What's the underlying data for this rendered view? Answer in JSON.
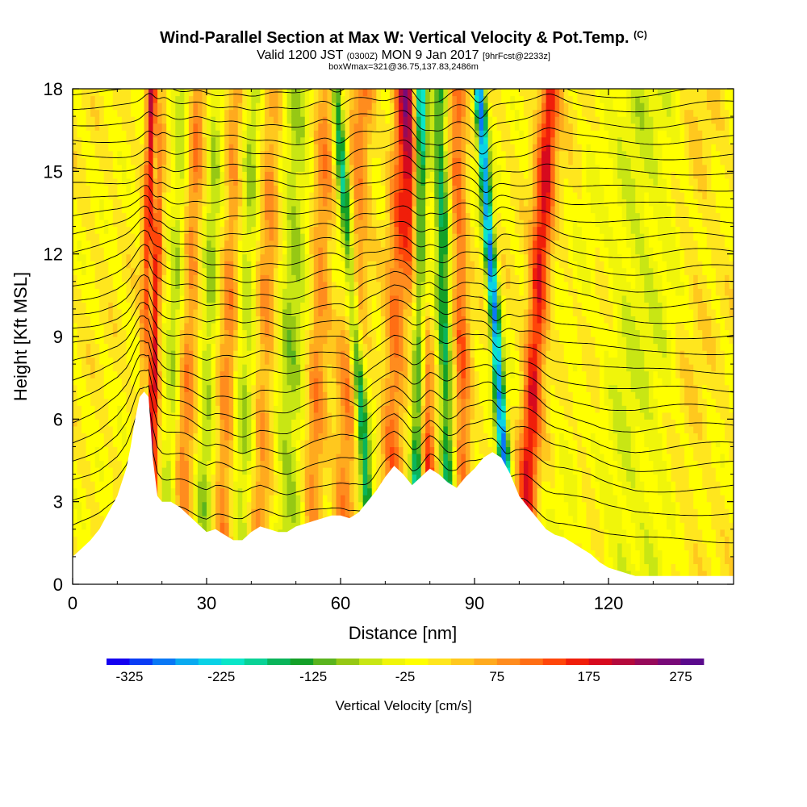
{
  "header": {
    "title_main": "Wind-Parallel Section at Max W: Vertical Velocity & Pot.Temp.",
    "title_mark": "(C)",
    "valid_prefix": "Valid 1200 JST",
    "valid_utc": "(0300Z)",
    "valid_date": "MON 9 Jan 2017",
    "forecast_tag": "[9hrFcst@2233z]",
    "box_info": "boxWmax=321@36.75,137.83,2486m"
  },
  "chart_data": {
    "type": "heatmap",
    "xlabel": "Distance [nm]",
    "ylabel": "Height [Kft MSL]",
    "xlim": [
      0,
      148
    ],
    "ylim": [
      0,
      18
    ],
    "x_ticks": [
      "0",
      "30",
      "60",
      "90",
      "120"
    ],
    "x_tick_values": [
      0,
      30,
      60,
      90,
      120
    ],
    "y_ticks": [
      "0",
      "3",
      "6",
      "9",
      "12",
      "15",
      "18"
    ],
    "y_tick_values": [
      0,
      3,
      6,
      9,
      12,
      15,
      18
    ],
    "colorbar": {
      "label": "Vertical Velocity [cm/s]",
      "min": -350,
      "step": 25,
      "tick_labels": [
        "-325",
        "-225",
        "-125",
        "-25",
        "75",
        "175",
        "275"
      ],
      "tick_values": [
        -325,
        -225,
        -125,
        -25,
        75,
        175,
        275
      ],
      "colors": [
        "#1400f0",
        "#0a3cf5",
        "#0a78f5",
        "#0aaaf0",
        "#0ad2e6",
        "#0ae6c8",
        "#0ad296",
        "#0ab45a",
        "#14a028",
        "#5ab41e",
        "#96c814",
        "#c8e614",
        "#f0f50a",
        "#ffff00",
        "#ffe61e",
        "#ffc81e",
        "#ffaa1e",
        "#ff8c1e",
        "#ff6e14",
        "#ff460a",
        "#f01e0a",
        "#d70a1e",
        "#b40a3c",
        "#960a5a",
        "#780a78",
        "#5a0a8c"
      ]
    },
    "terrain_kft": [
      [
        0,
        1.0
      ],
      [
        2,
        1.3
      ],
      [
        4,
        1.6
      ],
      [
        6,
        2.0
      ],
      [
        8,
        2.6
      ],
      [
        10,
        3.2
      ],
      [
        12,
        4.2
      ],
      [
        13,
        5.0
      ],
      [
        14,
        6.0
      ],
      [
        15,
        6.8
      ],
      [
        16,
        7.0
      ],
      [
        17,
        6.8
      ],
      [
        18,
        4.5
      ],
      [
        19,
        3.2
      ],
      [
        20,
        3.0
      ],
      [
        22,
        3.0
      ],
      [
        24,
        2.8
      ],
      [
        26,
        2.5
      ],
      [
        28,
        2.2
      ],
      [
        30,
        1.9
      ],
      [
        32,
        2.0
      ],
      [
        34,
        1.8
      ],
      [
        36,
        1.6
      ],
      [
        38,
        1.6
      ],
      [
        40,
        1.9
      ],
      [
        42,
        2.1
      ],
      [
        44,
        2.0
      ],
      [
        46,
        1.9
      ],
      [
        48,
        1.9
      ],
      [
        50,
        2.1
      ],
      [
        52,
        2.2
      ],
      [
        54,
        2.3
      ],
      [
        56,
        2.4
      ],
      [
        58,
        2.5
      ],
      [
        60,
        2.5
      ],
      [
        62,
        2.4
      ],
      [
        64,
        2.6
      ],
      [
        66,
        3.0
      ],
      [
        68,
        3.4
      ],
      [
        70,
        3.9
      ],
      [
        72,
        4.3
      ],
      [
        74,
        4.0
      ],
      [
        76,
        3.6
      ],
      [
        78,
        3.9
      ],
      [
        80,
        4.2
      ],
      [
        82,
        4.0
      ],
      [
        84,
        3.7
      ],
      [
        86,
        3.5
      ],
      [
        88,
        3.9
      ],
      [
        90,
        4.2
      ],
      [
        92,
        4.6
      ],
      [
        94,
        4.8
      ],
      [
        96,
        4.6
      ],
      [
        98,
        4.0
      ],
      [
        100,
        3.2
      ],
      [
        102,
        2.8
      ],
      [
        104,
        2.4
      ],
      [
        106,
        2.0
      ],
      [
        108,
        1.8
      ],
      [
        110,
        1.7
      ],
      [
        112,
        1.5
      ],
      [
        114,
        1.3
      ],
      [
        116,
        1.1
      ],
      [
        118,
        0.8
      ],
      [
        120,
        0.6
      ],
      [
        122,
        0.5
      ],
      [
        124,
        0.4
      ],
      [
        126,
        0.3
      ],
      [
        130,
        0.3
      ],
      [
        140,
        0.3
      ],
      [
        148,
        0.3
      ]
    ],
    "updrafts": [
      {
        "x0": 16.5,
        "x1": 18.5,
        "w": 1.6,
        "amp": 325
      },
      {
        "x0": 23.5,
        "x1": 28.0,
        "w": 2.6,
        "amp": 95
      },
      {
        "x0": 33.0,
        "x1": 37.0,
        "w": 2.4,
        "amp": 90
      },
      {
        "x0": 41.0,
        "x1": 45.0,
        "w": 2.8,
        "amp": 85
      },
      {
        "x0": 53.0,
        "x1": 57.0,
        "w": 2.4,
        "amp": 85
      },
      {
        "x0": 60.0,
        "x1": 65.0,
        "w": 2.6,
        "amp": 95
      },
      {
        "x0": 70.5,
        "x1": 74.0,
        "w": 2.4,
        "amp": 105
      },
      {
        "x0": 80.5,
        "x1": 75.0,
        "w": 2.2,
        "amp": 165
      },
      {
        "x0": 88.0,
        "x1": 86.0,
        "w": 1.8,
        "amp": 110
      },
      {
        "x0": 100.5,
        "x1": 107.0,
        "w": 2.2,
        "amp": 175
      },
      {
        "x0": 112.0,
        "x1": 116.0,
        "w": 4.0,
        "amp": 35
      },
      {
        "x0": 136.0,
        "x1": 140.0,
        "w": 5.0,
        "amp": 25
      }
    ],
    "downdrafts": [
      {
        "x0": 15.5,
        "x1": 19.0,
        "w": 0.9,
        "amp": -250
      },
      {
        "x0": 21.0,
        "x1": 25.0,
        "w": 2.0,
        "amp": -90
      },
      {
        "x0": 29.0,
        "x1": 32.0,
        "w": 2.2,
        "amp": -80
      },
      {
        "x0": 38.0,
        "x1": 40.0,
        "w": 2.6,
        "amp": -85
      },
      {
        "x0": 48.0,
        "x1": 50.0,
        "w": 3.5,
        "amp": -80
      },
      {
        "x0": 67.5,
        "x1": 59.0,
        "w": 1.4,
        "amp": -180
      },
      {
        "x0": 77.0,
        "x1": 78.0,
        "w": 1.5,
        "amp": -250
      },
      {
        "x0": 84.5,
        "x1": 82.0,
        "w": 1.6,
        "amp": -150
      },
      {
        "x0": 98.5,
        "x1": 91.0,
        "w": 1.2,
        "amp": -280
      },
      {
        "x0": 110.0,
        "x1": 117.0,
        "w": 3.5,
        "amp": -50
      },
      {
        "x0": 122.0,
        "x1": 126.0,
        "w": 5.0,
        "amp": -40
      },
      {
        "x0": 131.0,
        "x1": 133.0,
        "w": 6.0,
        "amp": -35
      }
    ],
    "contour_levels_kft": [
      1.5,
      2.5,
      3.4,
      4.2,
      4.9,
      5.6,
      6.3,
      7.0,
      7.7,
      8.4,
      9.0,
      9.6,
      10.2,
      10.8,
      11.4,
      12.0,
      12.6,
      13.2,
      13.8,
      14.4,
      15.0,
      15.6,
      16.2,
      16.8,
      17.4,
      17.9
    ]
  }
}
